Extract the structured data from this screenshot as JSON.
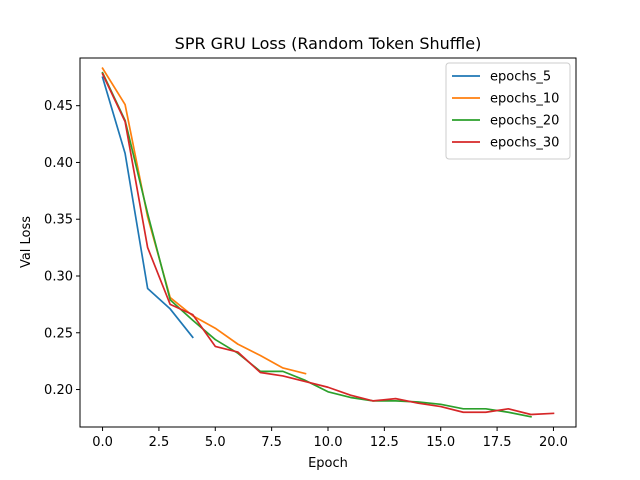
{
  "chart_data": {
    "type": "line",
    "title": "SPR GRU Loss (Random Token Shuffle)",
    "xlabel": "Epoch",
    "ylabel": "Val Loss",
    "xlim": [
      -1,
      21
    ],
    "ylim": [
      0.167,
      0.492
    ],
    "xticks": [
      0.0,
      2.5,
      5.0,
      7.5,
      10.0,
      12.5,
      15.0,
      17.5,
      20.0
    ],
    "xtick_labels": [
      "0.0",
      "2.5",
      "5.0",
      "7.5",
      "10.0",
      "12.5",
      "15.0",
      "17.5",
      "20.0"
    ],
    "yticks": [
      0.2,
      0.25,
      0.3,
      0.35,
      0.4,
      0.45
    ],
    "ytick_labels": [
      "0.20",
      "0.25",
      "0.30",
      "0.35",
      "0.40",
      "0.45"
    ],
    "grid": false,
    "legend_position": "top-right",
    "series": [
      {
        "name": "epochs_5",
        "color": "#1f77b4",
        "x": [
          0,
          1,
          2,
          3,
          4
        ],
        "y": [
          0.475,
          0.408,
          0.289,
          0.271,
          0.246
        ]
      },
      {
        "name": "epochs_10",
        "color": "#ff7f0e",
        "x": [
          0,
          1,
          2,
          3,
          4,
          5,
          6,
          7,
          8,
          9
        ],
        "y": [
          0.483,
          0.451,
          0.352,
          0.281,
          0.265,
          0.254,
          0.24,
          0.23,
          0.219,
          0.214
        ]
      },
      {
        "name": "epochs_20",
        "color": "#2ca02c",
        "x": [
          0,
          1,
          2,
          3,
          4,
          5,
          6,
          7,
          8,
          9,
          10,
          11,
          12,
          13,
          14,
          15,
          16,
          17,
          18,
          19
        ],
        "y": [
          0.479,
          0.437,
          0.355,
          0.279,
          0.261,
          0.244,
          0.232,
          0.216,
          0.216,
          0.208,
          0.198,
          0.193,
          0.19,
          0.19,
          0.189,
          0.187,
          0.183,
          0.183,
          0.18,
          0.176
        ]
      },
      {
        "name": "epochs_30",
        "color": "#d62728",
        "x": [
          0,
          1,
          2,
          3,
          4,
          5,
          6,
          7,
          8,
          9,
          10,
          11,
          12,
          13,
          14,
          15,
          16,
          17,
          18,
          19,
          20
        ],
        "y": [
          0.478,
          0.436,
          0.325,
          0.275,
          0.266,
          0.238,
          0.233,
          0.215,
          0.212,
          0.207,
          0.202,
          0.195,
          0.19,
          0.192,
          0.188,
          0.185,
          0.18,
          0.18,
          0.183,
          0.178,
          0.179
        ]
      }
    ]
  }
}
